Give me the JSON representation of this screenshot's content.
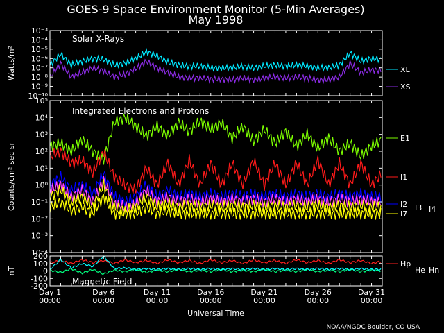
{
  "title": "GOES-9 Space Environment Monitor (5-Min Averages)",
  "subtitle": "May 1998",
  "credit": "NOAA/NGDC Boulder, CO USA",
  "xlabel": "Universal Time",
  "colors": {
    "background": "#000000",
    "axes": "#ffffff",
    "xl": "#00e8ff",
    "xs": "#8a2be2",
    "e1": "#7cfc00",
    "i1": "#ff1a1a",
    "i2": "#0000ff",
    "i3": "#ff40ff",
    "i4": "#ffff00",
    "i7": "#ffff00",
    "hp": "#ff2020",
    "he": "#00ff7f",
    "hn": "#00ffff"
  },
  "chart_data": [
    {
      "type": "line",
      "name": "Solar X-Rays",
      "panel_label": "Solar X-Rays",
      "ylabel": "Watts/m²",
      "yscale": "log",
      "ylim": [
        1e-10,
        0.001
      ],
      "yticks": [
        "10⁻³",
        "10⁻⁴",
        "10⁻⁵",
        "10⁻⁶",
        "10⁻⁷",
        "10⁻⁸",
        "10⁻⁹",
        "10⁻¹⁰"
      ],
      "xlim": [
        1,
        32
      ],
      "x": [
        1,
        2,
        3,
        4,
        5,
        6,
        7,
        8,
        9,
        10,
        11,
        12,
        13,
        14,
        15,
        16,
        17,
        18,
        19,
        20,
        21,
        22,
        23,
        24,
        25,
        26,
        27,
        28,
        29,
        30,
        31,
        32
      ],
      "series": [
        {
          "name": "XL",
          "color_key": "xl",
          "values": [
            2e-07,
            3e-06,
            2e-07,
            5e-07,
            1e-06,
            8e-07,
            2e-07,
            3e-07,
            1e-06,
            5e-06,
            2e-06,
            4e-07,
            2e-07,
            1.5e-07,
            1.5e-07,
            1e-07,
            1e-07,
            1e-07,
            1.5e-07,
            1e-07,
            1.5e-07,
            2e-07,
            1.5e-07,
            2e-07,
            1.5e-07,
            1e-07,
            1e-07,
            2e-07,
            4e-06,
            5e-07,
            1e-06,
            8e-07
          ]
        },
        {
          "name": "XS",
          "color_key": "xs",
          "values": [
            1e-08,
            3e-07,
            1e-08,
            3e-08,
            1e-07,
            5e-08,
            1e-08,
            2e-08,
            8e-08,
            5e-07,
            1e-07,
            3e-08,
            1e-08,
            8e-09,
            8e-09,
            6e-09,
            6e-09,
            5e-09,
            8e-09,
            5e-09,
            8e-09,
            1e-08,
            8e-09,
            1e-08,
            8e-09,
            5e-09,
            5e-09,
            1e-08,
            3e-07,
            3e-08,
            6e-08,
            5e-08
          ]
        }
      ]
    },
    {
      "type": "line",
      "name": "Integrated Electrons and Protons",
      "panel_label": "Integrated Electrons and Protons",
      "ylabel": "Counts/cm² sec sr",
      "yscale": "log",
      "ylim": [
        0.0001,
        100000.0
      ],
      "yticks": [
        "10⁵",
        "10⁴",
        "10³",
        "10²",
        "10¹",
        "10⁰",
        "10⁻¹",
        "10⁻²",
        "10⁻³",
        "10⁻⁴"
      ],
      "xlim": [
        1,
        32
      ],
      "x": [
        1,
        2,
        3,
        4,
        5,
        6,
        7,
        8,
        9,
        10,
        11,
        12,
        13,
        14,
        15,
        16,
        17,
        18,
        19,
        20,
        21,
        22,
        23,
        24,
        25,
        26,
        27,
        28,
        29,
        30,
        31,
        32
      ],
      "series": [
        {
          "name": "E1",
          "color_key": "e1",
          "values": [
            200,
            300,
            100,
            500,
            100,
            30,
            5000,
            10000,
            3000,
            800,
            3000,
            800,
            5000,
            1500,
            6000,
            2000,
            5000,
            600,
            3000,
            400,
            2000,
            300,
            1500,
            200,
            1000,
            150,
            600,
            100,
            300,
            50,
            200,
            500
          ]
        },
        {
          "name": "I1",
          "color_key": "i1",
          "values": [
            50,
            100,
            20,
            30,
            5,
            100,
            3,
            1,
            0.5,
            10,
            1,
            20,
            1,
            30,
            1,
            20,
            1,
            20,
            1,
            30,
            1,
            20,
            1,
            20,
            1,
            30,
            1,
            20,
            1,
            20,
            1,
            5
          ]
        },
        {
          "name": "I2",
          "color_key": "i2",
          "values": [
            1,
            3,
            0.5,
            1,
            0.3,
            5,
            0.2,
            0.1,
            0.2,
            1,
            0.2,
            0.5,
            0.2,
            0.3,
            0.2,
            0.3,
            0.2,
            0.3,
            0.2,
            0.3,
            0.2,
            0.3,
            0.2,
            0.3,
            0.2,
            0.3,
            0.2,
            0.3,
            0.2,
            0.3,
            0.2,
            0.2
          ]
        },
        {
          "name": "I3",
          "color_key": "i3",
          "values": [
            0.5,
            1,
            0.2,
            0.5,
            0.1,
            2,
            0.08,
            0.05,
            0.08,
            0.5,
            0.1,
            0.2,
            0.1,
            0.15,
            0.1,
            0.15,
            0.1,
            0.15,
            0.1,
            0.15,
            0.1,
            0.15,
            0.1,
            0.15,
            0.1,
            0.15,
            0.1,
            0.15,
            0.1,
            0.15,
            0.1,
            0.1
          ]
        },
        {
          "name": "I4",
          "color_key": "i4",
          "values": [
            0.2,
            0.5,
            0.1,
            0.2,
            0.05,
            1,
            0.05,
            0.03,
            0.05,
            0.2,
            0.05,
            0.08,
            0.05,
            0.06,
            0.05,
            0.06,
            0.05,
            0.06,
            0.05,
            0.06,
            0.05,
            0.06,
            0.05,
            0.06,
            0.05,
            0.06,
            0.05,
            0.06,
            0.05,
            0.06,
            0.05,
            0.05
          ]
        },
        {
          "name": "I7",
          "color_key": "i7",
          "values": [
            0.05,
            0.1,
            0.03,
            0.05,
            0.02,
            0.2,
            0.02,
            0.02,
            0.02,
            0.05,
            0.02,
            0.03,
            0.02,
            0.02,
            0.02,
            0.02,
            0.02,
            0.02,
            0.02,
            0.02,
            0.02,
            0.02,
            0.02,
            0.02,
            0.02,
            0.02,
            0.02,
            0.02,
            0.02,
            0.02,
            0.02,
            0.02
          ]
        }
      ]
    },
    {
      "type": "line",
      "name": "Magnetic Field",
      "panel_label": "Magnetic Field",
      "ylabel": "nT",
      "yscale": "linear",
      "ylim": [
        -200,
        200
      ],
      "yticks": [
        "200",
        "100",
        "0",
        "-100",
        "-200"
      ],
      "xlim": [
        1,
        32
      ],
      "xticks": [
        {
          "day": 1,
          "label": "Day 1",
          "time": "00:00"
        },
        {
          "day": 6,
          "label": "Day 6",
          "time": "00:00"
        },
        {
          "day": 11,
          "label": "Day 11",
          "time": "00:00"
        },
        {
          "day": 16,
          "label": "Day 16",
          "time": "00:00"
        },
        {
          "day": 21,
          "label": "Day 21",
          "time": "00:00"
        },
        {
          "day": 26,
          "label": "Day 26",
          "time": "00:00"
        },
        {
          "day": 31,
          "label": "Day 31",
          "time": "00:00"
        }
      ],
      "x": [
        1,
        2,
        3,
        4,
        5,
        6,
        7,
        8,
        9,
        10,
        11,
        12,
        13,
        14,
        15,
        16,
        17,
        18,
        19,
        20,
        21,
        22,
        23,
        24,
        25,
        26,
        27,
        28,
        29,
        30,
        31,
        32
      ],
      "series": [
        {
          "name": "Hp",
          "color_key": "hp",
          "values": [
            110,
            140,
            100,
            150,
            110,
            140,
            100,
            150,
            110,
            140,
            100,
            150,
            110,
            140,
            100,
            150,
            110,
            140,
            100,
            150,
            110,
            140,
            100,
            150,
            110,
            140,
            100,
            150,
            110,
            140,
            100,
            130
          ]
        },
        {
          "name": "He",
          "color_key": "he",
          "values": [
            10,
            -20,
            30,
            -30,
            20,
            -40,
            10,
            -10,
            20,
            -20,
            10,
            -10,
            20,
            -10,
            10,
            -10,
            20,
            -10,
            10,
            -10,
            20,
            -10,
            10,
            -10,
            20,
            -10,
            10,
            -10,
            20,
            -10,
            10,
            0
          ]
        },
        {
          "name": "Hn",
          "color_key": "hn",
          "values": [
            20,
            150,
            40,
            100,
            60,
            200,
            30,
            40,
            20,
            30,
            20,
            30,
            20,
            30,
            20,
            30,
            20,
            30,
            20,
            30,
            20,
            30,
            20,
            30,
            20,
            30,
            20,
            30,
            20,
            30,
            20,
            20
          ]
        }
      ]
    }
  ]
}
